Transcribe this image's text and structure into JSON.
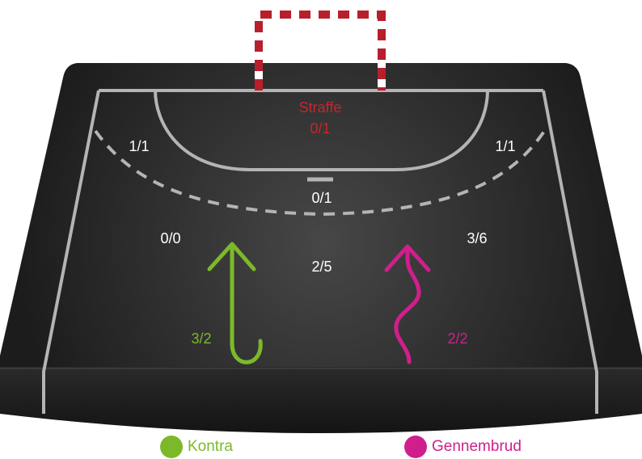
{
  "court": {
    "zones": {
      "penalty": {
        "title": "Straffe",
        "score": "0/1"
      },
      "left_wing_6m": "1/1",
      "right_wing_6m": "1/1",
      "center_6m": "0/1",
      "left_back": "0/0",
      "center_back": "2/5",
      "right_back": "3/6"
    },
    "arrows": {
      "kontra_score": "3/2",
      "gennembrud_score": "2/2"
    }
  },
  "legend": [
    {
      "label": "Kontra",
      "color": "#7cb92a"
    },
    {
      "label": "Gennembrud",
      "color": "#d01f8c"
    }
  ],
  "colors": {
    "court_dark": "#1f1f1f",
    "court_light": "#464646",
    "line": "#b4b4b4",
    "goal_red": "#b81f2c",
    "penalty_text": "#c4262e",
    "kontra": "#7cb92a",
    "gennembrud": "#d01f8c",
    "label_white": "#ffffff"
  }
}
